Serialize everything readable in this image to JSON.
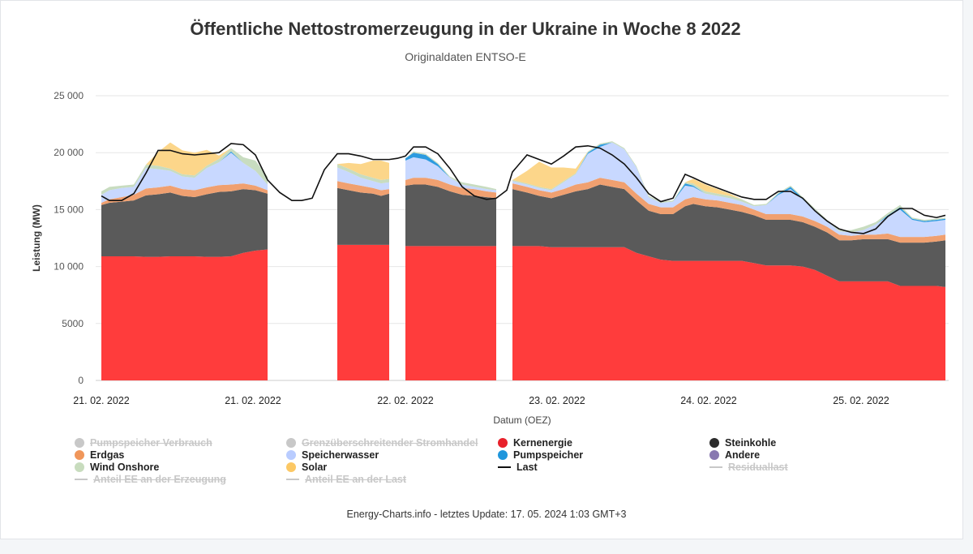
{
  "title": "Öffentliche Nettostromerzeugung in der Ukraine in Woche 8 2022",
  "subtitle": "Originaldaten ENTSO-E",
  "footer": "Energy-Charts.info - letztes Update: 17. 05. 2024 1:03 GMT+3",
  "chart_data": {
    "type": "area",
    "stacked": true,
    "xlabel": "Datum (OEZ)",
    "ylabel": "Leistung (MW)",
    "ylim": [
      0,
      25000
    ],
    "yticks": [
      0,
      5000,
      10000,
      15000,
      20000,
      25000
    ],
    "ytick_labels": [
      "0",
      "5000",
      "10 000",
      "15 000",
      "20 000",
      "25 000"
    ],
    "x_domain": [
      125,
      1166
    ],
    "xtick_labels": [
      "21. 02. 2022",
      "21. 02. 2022",
      "22. 02. 2022",
      "23. 02. 2022",
      "24. 02. 2022",
      "25. 02. 2022"
    ],
    "xtick_positions": [
      125,
      312,
      500,
      687,
      874,
      1062
    ],
    "grid": true,
    "legend_position": "bottom",
    "colors": {
      "Kernenergie": "#ff3c3c",
      "Steinkohle": "#5a5a5a",
      "Erdgas": "#f0a070",
      "Speicherwasser": "#c8d8ff",
      "Pumpspeicher": "#2d9be0",
      "Wind Onshore": "#c8dcc0",
      "Solar": "#fcd68a",
      "Last": "#111111"
    },
    "segments": [
      {
        "x": [
          125,
          135,
          150,
          165,
          180,
          195,
          210,
          225,
          240,
          255,
          270,
          285,
          300,
          315,
          330
        ],
        "Kernenergie": [
          10900,
          10900,
          10900,
          10900,
          10850,
          10850,
          10900,
          10900,
          10900,
          10850,
          10850,
          10900,
          11200,
          11400,
          11500
        ],
        "Steinkohle": [
          4500,
          4700,
          4800,
          4900,
          5400,
          5500,
          5600,
          5300,
          5200,
          5500,
          5700,
          5700,
          5600,
          5300,
          4900
        ],
        "Erdgas": [
          200,
          300,
          400,
          500,
          600,
          600,
          600,
          600,
          600,
          600,
          600,
          600,
          500,
          400,
          300
        ],
        "Speicherwasser": [
          700,
          800,
          800,
          700,
          1800,
          1600,
          1300,
          1100,
          1100,
          1700,
          2000,
          2800,
          1800,
          1300,
          500
        ],
        "Pumpspeicher": [
          0,
          0,
          0,
          0,
          0,
          0,
          0,
          0,
          0,
          0,
          0,
          100,
          0,
          0,
          0
        ],
        "Wind Onshore": [
          300,
          300,
          200,
          200,
          300,
          300,
          200,
          200,
          200,
          200,
          300,
          300,
          500,
          900,
          700
        ],
        "Solar": [
          0,
          0,
          0,
          0,
          0,
          1200,
          2300,
          2100,
          2000,
          1400,
          300,
          0,
          0,
          0,
          0
        ]
      },
      {
        "x": [
          416,
          430,
          445,
          460,
          470,
          480
        ],
        "Kernenergie": [
          11900,
          11900,
          11900,
          11900,
          11900,
          11900
        ],
        "Steinkohle": [
          5000,
          4800,
          4600,
          4500,
          4300,
          4500
        ],
        "Erdgas": [
          600,
          600,
          600,
          500,
          500,
          400
        ],
        "Speicherwasser": [
          1200,
          1000,
          700,
          600,
          600,
          600
        ],
        "Pumpspeicher": [
          0,
          0,
          0,
          0,
          0,
          0
        ],
        "Wind Onshore": [
          300,
          300,
          300,
          300,
          300,
          300
        ],
        "Solar": [
          0,
          500,
          900,
          1500,
          1700,
          1400
        ]
      },
      {
        "x": [
          500,
          510,
          525,
          540,
          555,
          570,
          585,
          600,
          612
        ],
        "Kernenergie": [
          11800,
          11800,
          11800,
          11800,
          11800,
          11800,
          11800,
          11800,
          11800
        ],
        "Steinkohle": [
          5300,
          5400,
          5400,
          5200,
          4800,
          4500,
          4400,
          4300,
          4200
        ],
        "Erdgas": [
          500,
          600,
          600,
          600,
          600,
          600,
          600,
          500,
          500
        ],
        "Speicherwasser": [
          1700,
          1800,
          1600,
          1200,
          600,
          300,
          200,
          200,
          200
        ],
        "Pumpspeicher": [
          200,
          400,
          400,
          200,
          0,
          0,
          0,
          0,
          0
        ],
        "Wind Onshore": [
          0,
          100,
          100,
          100,
          100,
          200,
          200,
          200,
          100
        ],
        "Solar": [
          0,
          0,
          0,
          0,
          0,
          0,
          0,
          0,
          0
        ]
      },
      {
        "x": [
          632,
          650,
          665,
          680,
          695,
          710,
          725,
          740,
          755,
          770,
          785,
          800,
          815,
          830,
          845,
          855,
          870,
          885,
          900,
          915,
          930,
          945,
          960,
          975,
          990,
          1005,
          1020,
          1035,
          1050,
          1065,
          1080,
          1095,
          1110,
          1125,
          1140,
          1155,
          1166
        ],
        "Kernenergie": [
          11800,
          11800,
          11800,
          11700,
          11700,
          11700,
          11700,
          11700,
          11700,
          11700,
          11200,
          10900,
          10600,
          10500,
          10500,
          10500,
          10500,
          10500,
          10500,
          10500,
          10300,
          10100,
          10100,
          10100,
          10000,
          9700,
          9200,
          8700,
          8700,
          8700,
          8700,
          8700,
          8300,
          8300,
          8300,
          8300,
          8200
        ],
        "Steinkohle": [
          5000,
          4700,
          4400,
          4300,
          4600,
          4900,
          5100,
          5500,
          5300,
          5100,
          4600,
          4000,
          4000,
          4100,
          4800,
          5000,
          4800,
          4700,
          4500,
          4300,
          4200,
          4000,
          4000,
          4000,
          3900,
          3800,
          3800,
          3600,
          3600,
          3700,
          3700,
          3700,
          3800,
          3800,
          3800,
          3900,
          4100
        ],
        "Erdgas": [
          500,
          500,
          500,
          500,
          500,
          600,
          600,
          600,
          600,
          600,
          600,
          600,
          600,
          600,
          600,
          600,
          600,
          600,
          600,
          600,
          500,
          500,
          500,
          500,
          500,
          500,
          500,
          500,
          400,
          400,
          400,
          500,
          500,
          500,
          500,
          500,
          500
        ],
        "Speicherwasser": [
          200,
          200,
          200,
          200,
          600,
          900,
          2500,
          2700,
          3300,
          2900,
          2300,
          600,
          400,
          500,
          1200,
          900,
          500,
          400,
          400,
          300,
          300,
          800,
          1700,
          2200,
          1500,
          1000,
          500,
          300,
          300,
          400,
          900,
          1500,
          2400,
          1500,
          1300,
          1300,
          1300
        ],
        "Pumpspeicher": [
          0,
          0,
          0,
          0,
          0,
          0,
          100,
          200,
          0,
          0,
          0,
          0,
          0,
          0,
          200,
          100,
          0,
          0,
          0,
          0,
          0,
          0,
          100,
          200,
          100,
          0,
          0,
          0,
          0,
          0,
          0,
          100,
          200,
          100,
          100,
          100,
          100
        ],
        "Wind Onshore": [
          100,
          100,
          100,
          100,
          100,
          100,
          100,
          100,
          100,
          100,
          100,
          100,
          100,
          100,
          100,
          200,
          200,
          200,
          200,
          200,
          100,
          100,
          100,
          100,
          100,
          100,
          100,
          100,
          200,
          300,
          200,
          200,
          200,
          100,
          100,
          100,
          100
        ],
        "Solar": [
          0,
          1100,
          2200,
          1900,
          1200,
          400,
          0,
          0,
          0,
          0,
          0,
          0,
          0,
          0,
          0,
          400,
          600,
          400,
          200,
          0,
          0,
          0,
          0,
          0,
          0,
          0,
          0,
          0,
          0,
          0,
          0,
          0,
          0,
          0,
          0,
          0,
          0
        ]
      }
    ],
    "last": {
      "x": [
        125,
        135,
        150,
        165,
        180,
        195,
        210,
        225,
        240,
        255,
        270,
        285,
        300,
        315,
        330,
        345,
        360,
        372,
        385,
        400,
        416,
        430,
        445,
        460,
        470,
        480,
        490,
        500,
        510,
        525,
        540,
        555,
        570,
        585,
        600,
        612,
        625,
        632,
        650,
        665,
        680,
        695,
        710,
        725,
        740,
        755,
        770,
        785,
        800,
        815,
        830,
        845,
        855,
        870,
        885,
        900,
        915,
        930,
        945,
        960,
        975,
        990,
        1005,
        1020,
        1035,
        1050,
        1065,
        1080,
        1095,
        1110,
        1125,
        1140,
        1155,
        1166
      ],
      "values": [
        16200,
        15800,
        15800,
        16400,
        18200,
        20200,
        20200,
        19900,
        19800,
        19900,
        20000,
        20800,
        20700,
        19800,
        17600,
        16500,
        15800,
        15800,
        16000,
        18500,
        19900,
        19900,
        19700,
        19400,
        19400,
        19400,
        19500,
        19700,
        20500,
        20500,
        19900,
        18600,
        17000,
        16200,
        15900,
        16000,
        16700,
        18300,
        19800,
        19400,
        19000,
        19700,
        20500,
        20600,
        20400,
        19800,
        19000,
        17800,
        16400,
        15700,
        16000,
        18100,
        17800,
        17300,
        16900,
        16500,
        16100,
        15900,
        15900,
        16600,
        16600,
        16000,
        14900,
        14000,
        13300,
        13000,
        12900,
        13300,
        14400,
        15100,
        15100,
        14500,
        14300,
        14500
      ]
    },
    "legend": [
      {
        "label": "Pumpspeicher Verbrauch",
        "color": "#c8c8c8",
        "marker": "dot",
        "hidden": true
      },
      {
        "label": "Grenzüberschreitender Stromhandel",
        "color": "#c8c8c8",
        "marker": "dot",
        "hidden": true
      },
      {
        "label": "Kernenergie",
        "color": "#e8212b",
        "marker": "dot",
        "hidden": false
      },
      {
        "label": "Steinkohle",
        "color": "#2b2b2b",
        "marker": "dot",
        "hidden": false
      },
      {
        "label": "Erdgas",
        "color": "#f0965a",
        "marker": "dot",
        "hidden": false
      },
      {
        "label": "Speicherwasser",
        "color": "#b9ccff",
        "marker": "dot",
        "hidden": false
      },
      {
        "label": "Pumpspeicher",
        "color": "#1f96dc",
        "marker": "dot",
        "hidden": false
      },
      {
        "label": "Andere",
        "color": "#8878b0",
        "marker": "dot",
        "hidden": false
      },
      {
        "label": "Wind Onshore",
        "color": "#c8dcbe",
        "marker": "dot",
        "hidden": false
      },
      {
        "label": "Solar",
        "color": "#fcc864",
        "marker": "dot",
        "hidden": false
      },
      {
        "label": "Last",
        "color": "#111111",
        "marker": "line",
        "hidden": false
      },
      {
        "label": "Residuallast",
        "color": "#c8c8c8",
        "marker": "line",
        "hidden": true
      },
      {
        "label": "Anteil EE an der Erzeugung",
        "color": "#c8c8c8",
        "marker": "line",
        "hidden": true
      },
      {
        "label": "Anteil EE an der Last",
        "color": "#c8c8c8",
        "marker": "line",
        "hidden": true
      }
    ]
  }
}
